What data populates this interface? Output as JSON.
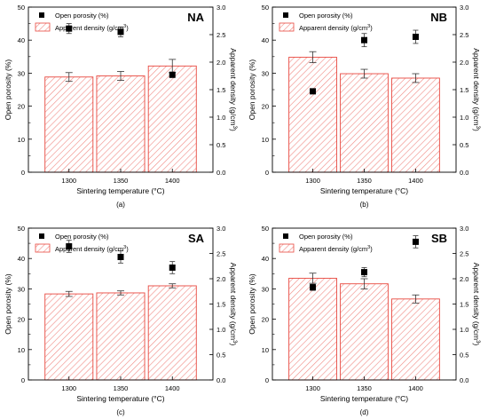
{
  "colors": {
    "bar_stroke": "#e8483f",
    "bar_hatch": "#f08a84",
    "marker": "#000000",
    "error_bar": "#333333",
    "axis": "#000000"
  },
  "legend": {
    "porosity_label": "Open porosity (%)",
    "density_label_prefix": "Apparent density (g/cm",
    "density_label_sup": "3",
    "density_label_suffix": ")"
  },
  "chart_data": [
    {
      "type": "bar",
      "title": "NA",
      "panel_label": "(a)",
      "categories": [
        "1300",
        "1350",
        "1400"
      ],
      "xlabel": "Sintering temperature (°C)",
      "ylabel": "Open porosity (%)",
      "y2label": "Apparent density (g/cm3)",
      "ylim": [
        0,
        50
      ],
      "y2lim": [
        0,
        3.0
      ],
      "y_ticks": [
        "0",
        "10",
        "20",
        "30",
        "40",
        "50"
      ],
      "y2_ticks": [
        "0.0",
        "0.5",
        "1.0",
        "1.5",
        "2.0",
        "2.5",
        "3.0"
      ],
      "series": [
        {
          "name": "Apparent density (g/cm3)",
          "kind": "bar",
          "axis": "right",
          "values": [
            1.73,
            1.75,
            1.93
          ],
          "errors": [
            0.08,
            0.08,
            0.12
          ]
        },
        {
          "name": "Open porosity (%)",
          "kind": "scatter",
          "axis": "left",
          "values": [
            43.5,
            42.5,
            29.5
          ],
          "errors": [
            1.5,
            1.5,
            0.8
          ]
        }
      ],
      "legend_position": "top-left"
    },
    {
      "type": "bar",
      "title": "NB",
      "panel_label": "(b)",
      "categories": [
        "1300",
        "1350",
        "1400"
      ],
      "xlabel": "Sintering temperature (°C)",
      "ylabel": "Open porosity (%)",
      "y2label": "Apparent density (g/cm3)",
      "ylim": [
        0,
        50
      ],
      "y2lim": [
        0,
        3.0
      ],
      "y_ticks": [
        "0",
        "10",
        "20",
        "30",
        "40",
        "50"
      ],
      "y2_ticks": [
        "0.0",
        "0.5",
        "1.0",
        "1.5",
        "2.0",
        "2.5",
        "3.0"
      ],
      "series": [
        {
          "name": "Apparent density (g/cm3)",
          "kind": "bar",
          "axis": "right",
          "values": [
            2.09,
            1.79,
            1.71
          ],
          "errors": [
            0.1,
            0.08,
            0.08
          ]
        },
        {
          "name": "Open porosity (%)",
          "kind": "scatter",
          "axis": "left",
          "values": [
            24.5,
            40.0,
            41.0
          ],
          "errors": [
            0.5,
            2.0,
            2.0
          ]
        }
      ],
      "legend_position": "top-left"
    },
    {
      "type": "bar",
      "title": "SA",
      "panel_label": "(c)",
      "categories": [
        "1300",
        "1350",
        "1400"
      ],
      "xlabel": "Sintering temperature (°C)",
      "ylabel": "Open porosity (%)",
      "y2label": "Apparent density (g/cm3)",
      "ylim": [
        0,
        50
      ],
      "y2lim": [
        0,
        3.0
      ],
      "y_ticks": [
        "0",
        "10",
        "20",
        "30",
        "40",
        "50"
      ],
      "y2_ticks": [
        "0.0",
        "0.5",
        "1.0",
        "1.5",
        "2.0",
        "2.5",
        "3.0"
      ],
      "series": [
        {
          "name": "Apparent density (g/cm3)",
          "kind": "bar",
          "axis": "right",
          "values": [
            1.7,
            1.72,
            1.86
          ],
          "errors": [
            0.05,
            0.04,
            0.04
          ]
        },
        {
          "name": "Open porosity (%)",
          "kind": "scatter",
          "axis": "left",
          "values": [
            44.0,
            40.5,
            37.0
          ],
          "errors": [
            2.0,
            2.0,
            2.0
          ]
        }
      ],
      "legend_position": "top-left"
    },
    {
      "type": "bar",
      "title": "SB",
      "panel_label": "(d)",
      "categories": [
        "1300",
        "1350",
        "1400"
      ],
      "xlabel": "Sintering temperature (°C)",
      "ylabel": "Open porosity (%)",
      "y2label": "Apparent density (g/cm3)",
      "ylim": [
        0,
        50
      ],
      "y2lim": [
        0,
        3.0
      ],
      "y_ticks": [
        "0",
        "10",
        "20",
        "30",
        "40",
        "50"
      ],
      "y2_ticks": [
        "0.0",
        "0.5",
        "1.0",
        "1.5",
        "2.0",
        "2.5",
        "3.0"
      ],
      "series": [
        {
          "name": "Apparent density (g/cm3)",
          "kind": "bar",
          "axis": "right",
          "values": [
            2.01,
            1.9,
            1.6
          ],
          "errors": [
            0.1,
            0.1,
            0.08
          ]
        },
        {
          "name": "Open porosity (%)",
          "kind": "scatter",
          "axis": "left",
          "values": [
            30.5,
            35.5,
            45.5
          ],
          "errors": [
            1.0,
            1.5,
            2.0
          ]
        }
      ],
      "legend_position": "top-left"
    }
  ]
}
